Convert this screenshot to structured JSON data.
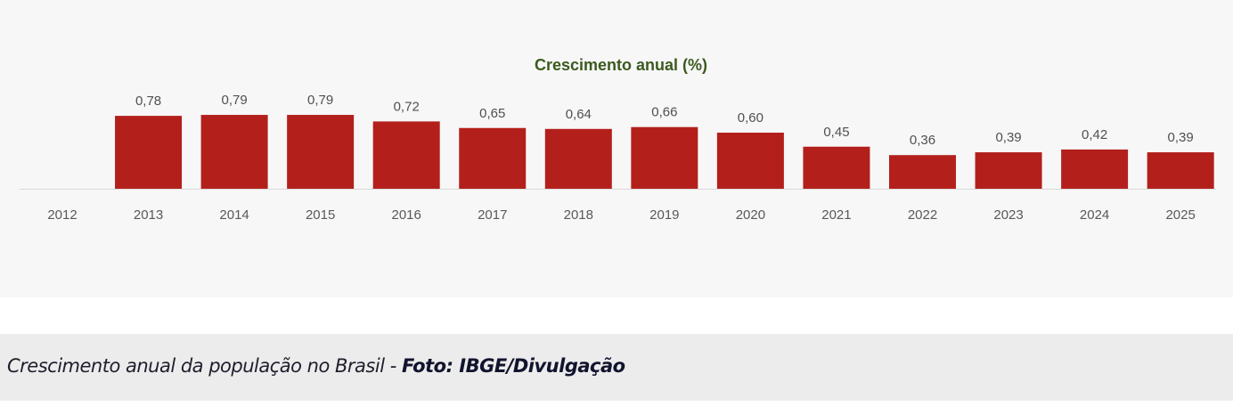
{
  "chart_data": {
    "type": "bar",
    "title": "Crescimento anual (%)",
    "categories": [
      "2012",
      "2013",
      "2014",
      "2015",
      "2016",
      "2017",
      "2018",
      "2019",
      "2020",
      "2021",
      "2022",
      "2023",
      "2024",
      "2025"
    ],
    "values": [
      null,
      0.78,
      0.79,
      0.79,
      0.72,
      0.65,
      0.64,
      0.66,
      0.6,
      0.45,
      0.36,
      0.39,
      0.42,
      0.39
    ],
    "data_labels": [
      null,
      "0,78",
      "0,79",
      "0,79",
      "0,72",
      "0,65",
      "0,64",
      "0,66",
      "0,60",
      "0,45",
      "0,36",
      "0,39",
      "0,42",
      "0,39"
    ],
    "xlabel": "",
    "ylabel": "",
    "ylim": [
      0,
      0.8
    ],
    "grid": false,
    "bar_color": "#b3201b",
    "title_color": "#3b5a1e"
  },
  "caption": {
    "text": "Crescimento anual da população no Brasil - ",
    "credit": "Foto: IBGE/Divulgação"
  }
}
